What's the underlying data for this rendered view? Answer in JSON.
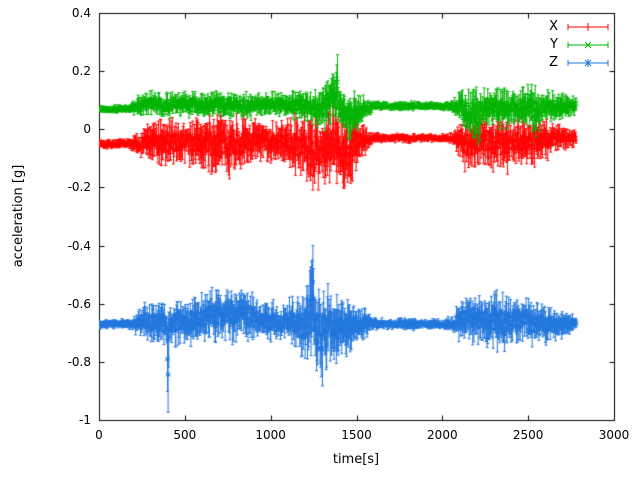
{
  "chart_data": {
    "type": "line",
    "title": "",
    "xlabel": "time[s]",
    "ylabel": "acceleration [g]",
    "xlim": [
      0,
      3000
    ],
    "ylim": [
      -1,
      0.4
    ],
    "xticks": {
      "values": [
        0,
        500,
        1000,
        1500,
        2000,
        2500,
        3000
      ],
      "labels": [
        "0",
        "500",
        "1000",
        "1500",
        "2000",
        "2500",
        "3000"
      ]
    },
    "yticks": {
      "values": [
        -1,
        -0.8,
        -0.6,
        -0.4,
        -0.2,
        0,
        0.2,
        0.4
      ],
      "labels": [
        "-1",
        "-0.8",
        "-0.6",
        "-0.4",
        "-0.2",
        "0",
        "0.2",
        "0.4"
      ]
    },
    "grid": false,
    "legend_position": "top-right",
    "style": "points-with-errorbars",
    "series": [
      {
        "name": "X",
        "color": "#ff0000",
        "marker": "plus",
        "seed": 7,
        "t_start": 0,
        "t_end": 2780,
        "envelope": [
          [
            0,
            -0.05,
            0.012
          ],
          [
            180,
            -0.05,
            0.012
          ],
          [
            230,
            -0.05,
            0.03
          ],
          [
            300,
            -0.04,
            0.05
          ],
          [
            400,
            -0.05,
            0.06
          ],
          [
            500,
            -0.04,
            0.05
          ],
          [
            600,
            -0.05,
            0.07
          ],
          [
            700,
            -0.05,
            0.08
          ],
          [
            800,
            -0.05,
            0.07
          ],
          [
            900,
            -0.04,
            0.05
          ],
          [
            1000,
            -0.04,
            0.05
          ],
          [
            1100,
            -0.05,
            0.06
          ],
          [
            1200,
            -0.06,
            0.08
          ],
          [
            1250,
            -0.08,
            0.1
          ],
          [
            1300,
            -0.07,
            0.09
          ],
          [
            1350,
            -0.06,
            0.08
          ],
          [
            1382,
            -0.02,
            0.1
          ],
          [
            1400,
            -0.07,
            0.09
          ],
          [
            1450,
            -0.08,
            0.1
          ],
          [
            1500,
            -0.05,
            0.06
          ],
          [
            1550,
            -0.04,
            0.04
          ],
          [
            1600,
            -0.03,
            0.013
          ],
          [
            1700,
            -0.03,
            0.01
          ],
          [
            1800,
            -0.03,
            0.012
          ],
          [
            1900,
            -0.03,
            0.01
          ],
          [
            2000,
            -0.03,
            0.01
          ],
          [
            2060,
            -0.03,
            0.015
          ],
          [
            2100,
            -0.04,
            0.05
          ],
          [
            2150,
            -0.05,
            0.07
          ],
          [
            2250,
            -0.04,
            0.06
          ],
          [
            2350,
            -0.05,
            0.07
          ],
          [
            2450,
            -0.04,
            0.06
          ],
          [
            2550,
            -0.04,
            0.06
          ],
          [
            2650,
            -0.03,
            0.04
          ],
          [
            2720,
            -0.03,
            0.03
          ],
          [
            2780,
            -0.03,
            0.02
          ]
        ]
      },
      {
        "name": "Y",
        "color": "#00b400",
        "marker": "cross",
        "seed": 13,
        "t_start": 0,
        "t_end": 2780,
        "envelope": [
          [
            0,
            0.07,
            0.01
          ],
          [
            180,
            0.07,
            0.01
          ],
          [
            230,
            0.08,
            0.025
          ],
          [
            300,
            0.09,
            0.03
          ],
          [
            400,
            0.08,
            0.03
          ],
          [
            500,
            0.09,
            0.03
          ],
          [
            600,
            0.08,
            0.035
          ],
          [
            700,
            0.09,
            0.03
          ],
          [
            800,
            0.08,
            0.035
          ],
          [
            900,
            0.08,
            0.03
          ],
          [
            1000,
            0.09,
            0.03
          ],
          [
            1100,
            0.08,
            0.03
          ],
          [
            1200,
            0.08,
            0.04
          ],
          [
            1300,
            0.07,
            0.05
          ],
          [
            1388,
            0.13,
            0.09
          ],
          [
            1400,
            0.06,
            0.06
          ],
          [
            1450,
            0.04,
            0.06
          ],
          [
            1500,
            0.06,
            0.05
          ],
          [
            1550,
            0.07,
            0.03
          ],
          [
            1600,
            0.08,
            0.012
          ],
          [
            1700,
            0.08,
            0.01
          ],
          [
            1800,
            0.08,
            0.012
          ],
          [
            1900,
            0.08,
            0.01
          ],
          [
            2000,
            0.08,
            0.01
          ],
          [
            2060,
            0.08,
            0.015
          ],
          [
            2100,
            0.08,
            0.04
          ],
          [
            2150,
            0.06,
            0.06
          ],
          [
            2200,
            0.05,
            0.07
          ],
          [
            2250,
            0.07,
            0.05
          ],
          [
            2300,
            0.08,
            0.04
          ],
          [
            2350,
            0.06,
            0.06
          ],
          [
            2400,
            0.08,
            0.04
          ],
          [
            2450,
            0.07,
            0.05
          ],
          [
            2500,
            0.08,
            0.05
          ],
          [
            2550,
            0.06,
            0.06
          ],
          [
            2600,
            0.08,
            0.04
          ],
          [
            2650,
            0.08,
            0.04
          ],
          [
            2720,
            0.08,
            0.03
          ],
          [
            2780,
            0.08,
            0.02
          ]
        ]
      },
      {
        "name": "Z",
        "color": "#2277dd",
        "marker": "star",
        "seed": 99,
        "t_start": 0,
        "t_end": 2780,
        "envelope": [
          [
            0,
            -0.67,
            0.012
          ],
          [
            180,
            -0.67,
            0.012
          ],
          [
            230,
            -0.67,
            0.03
          ],
          [
            280,
            -0.66,
            0.05
          ],
          [
            350,
            -0.67,
            0.06
          ],
          [
            395,
            -0.67,
            0.05
          ],
          [
            402,
            -0.78,
            0.17
          ],
          [
            410,
            -0.67,
            0.05
          ],
          [
            450,
            -0.66,
            0.06
          ],
          [
            500,
            -0.67,
            0.05
          ],
          [
            550,
            -0.66,
            0.06
          ],
          [
            600,
            -0.65,
            0.06
          ],
          [
            650,
            -0.64,
            0.06
          ],
          [
            700,
            -0.64,
            0.07
          ],
          [
            750,
            -0.63,
            0.07
          ],
          [
            800,
            -0.63,
            0.07
          ],
          [
            850,
            -0.64,
            0.06
          ],
          [
            900,
            -0.65,
            0.06
          ],
          [
            950,
            -0.66,
            0.05
          ],
          [
            1000,
            -0.66,
            0.05
          ],
          [
            1050,
            -0.67,
            0.05
          ],
          [
            1100,
            -0.66,
            0.05
          ],
          [
            1150,
            -0.67,
            0.06
          ],
          [
            1200,
            -0.68,
            0.08
          ],
          [
            1248,
            -0.6,
            0.15
          ],
          [
            1260,
            -0.68,
            0.09
          ],
          [
            1300,
            -0.7,
            0.12
          ],
          [
            1350,
            -0.68,
            0.1
          ],
          [
            1400,
            -0.68,
            0.09
          ],
          [
            1450,
            -0.67,
            0.07
          ],
          [
            1500,
            -0.67,
            0.05
          ],
          [
            1550,
            -0.67,
            0.04
          ],
          [
            1600,
            -0.67,
            0.015
          ],
          [
            1700,
            -0.67,
            0.012
          ],
          [
            1800,
            -0.67,
            0.015
          ],
          [
            1900,
            -0.67,
            0.012
          ],
          [
            2000,
            -0.67,
            0.012
          ],
          [
            2060,
            -0.67,
            0.02
          ],
          [
            2100,
            -0.66,
            0.05
          ],
          [
            2150,
            -0.65,
            0.06
          ],
          [
            2200,
            -0.65,
            0.06
          ],
          [
            2250,
            -0.66,
            0.06
          ],
          [
            2300,
            -0.65,
            0.07
          ],
          [
            2350,
            -0.67,
            0.08
          ],
          [
            2400,
            -0.66,
            0.06
          ],
          [
            2450,
            -0.66,
            0.06
          ],
          [
            2500,
            -0.66,
            0.06
          ],
          [
            2550,
            -0.67,
            0.05
          ],
          [
            2600,
            -0.67,
            0.05
          ],
          [
            2650,
            -0.67,
            0.04
          ],
          [
            2720,
            -0.67,
            0.03
          ],
          [
            2780,
            -0.67,
            0.02
          ]
        ]
      }
    ],
    "legend": {
      "entries": [
        "X",
        "Y",
        "Z"
      ]
    },
    "colors": {
      "axis": "#000000",
      "background": "#ffffff"
    }
  }
}
